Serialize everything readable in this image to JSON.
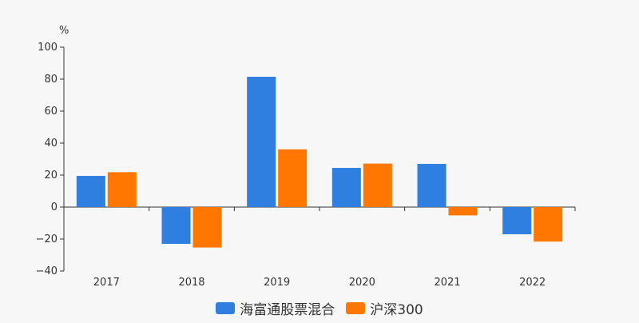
{
  "chart_data": {
    "type": "bar",
    "ylabel": "%",
    "categories": [
      "2017",
      "2018",
      "2019",
      "2020",
      "2021",
      "2022"
    ],
    "ylim": [
      -40,
      100
    ],
    "yticks": [
      100,
      80,
      60,
      40,
      20,
      0,
      -20,
      -40
    ],
    "ytick_labels": [
      "100",
      "80",
      "60",
      "40",
      "20",
      "0",
      "−20",
      "−40"
    ],
    "grid": false,
    "legend_position": "bottom-center",
    "series": [
      {
        "name": "海富通股票混合",
        "color": "#2e7fe0",
        "values": [
          19.5,
          -23,
          81.5,
          24.5,
          27,
          -17
        ]
      },
      {
        "name": "沪深300",
        "color": "#ff7600",
        "values": [
          21.8,
          -25.3,
          36.1,
          27.2,
          -5.2,
          -21.6
        ]
      }
    ]
  }
}
